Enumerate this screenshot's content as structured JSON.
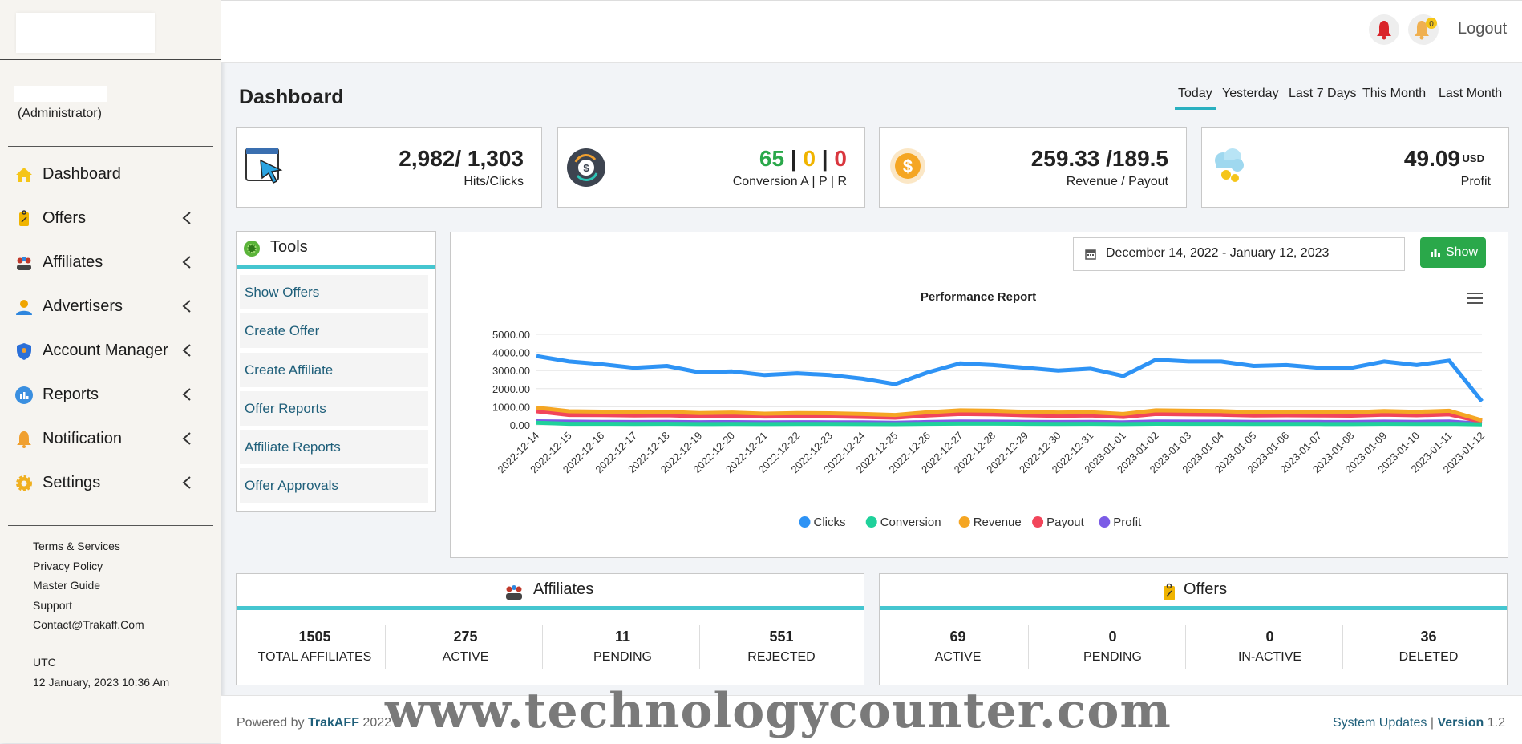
{
  "sidebar": {
    "user_role": "(Administrator)",
    "items": [
      {
        "label": "Dashboard",
        "icon": "home-icon",
        "color": "#f5c518"
      },
      {
        "label": "Offers",
        "icon": "offer-tag-icon",
        "color": "#f0b400"
      },
      {
        "label": "Affiliates",
        "icon": "affiliates-group-icon",
        "color": "#c0392b"
      },
      {
        "label": "Advertisers",
        "icon": "advertiser-person-icon",
        "color": "#f0a500"
      },
      {
        "label": "Account Manager",
        "icon": "shield-icon",
        "color": "#2b6fd8"
      },
      {
        "label": "Reports",
        "icon": "reports-chart-icon",
        "color": "#3a8fe0"
      },
      {
        "label": "Notification",
        "icon": "bell-icon",
        "color": "#f0a030"
      },
      {
        "label": "Settings",
        "icon": "gear-icon",
        "color": "#f0b020"
      }
    ],
    "links": [
      "Terms & Services",
      "Privacy Policy",
      "Master Guide",
      "Support",
      "Contact@Trakaff.Com"
    ],
    "timezone": "UTC",
    "datetime": "12 January, 2023 10:36 Am"
  },
  "topbar": {
    "notification_count": "0",
    "logout": "Logout"
  },
  "page": {
    "title": "Dashboard",
    "ranges": [
      "Today",
      "Yesterday",
      "Last 7 Days",
      "This Month",
      "Last Month"
    ]
  },
  "stats": {
    "hits": {
      "value": "2,982/ 1,303",
      "label": "Hits/Clicks"
    },
    "conversion": {
      "a": "65",
      "p": "0",
      "r": "0",
      "sep": "|",
      "label": "Conversion A | P | R",
      "colors": {
        "a": "#2aa84a",
        "p": "#f0b400",
        "r": "#d9363e"
      }
    },
    "revenue": {
      "value": "259.33 /189.5",
      "label": "Revenue / Payout"
    },
    "profit": {
      "value": "49.09",
      "unit": "USD",
      "label": "Profit"
    }
  },
  "tools": {
    "title": "Tools",
    "links": [
      "Show Offers",
      "Create Offer",
      "Create Affiliate",
      "Offer Reports",
      "Affiliate Reports",
      "Offer Approvals"
    ]
  },
  "chart_controls": {
    "date_range": "December 14, 2022 - January 12, 2023",
    "show": "Show"
  },
  "chart_data": {
    "type": "line",
    "title": "Performance Report",
    "x": [
      "2022-12-14",
      "2022-12-15",
      "2022-12-16",
      "2022-12-17",
      "2022-12-18",
      "2022-12-19",
      "2022-12-20",
      "2022-12-21",
      "2022-12-22",
      "2022-12-23",
      "2022-12-24",
      "2022-12-25",
      "2022-12-26",
      "2022-12-27",
      "2022-12-28",
      "2022-12-29",
      "2022-12-30",
      "2022-12-31",
      "2023-01-01",
      "2023-01-02",
      "2023-01-03",
      "2023-01-04",
      "2023-01-05",
      "2023-01-06",
      "2023-01-07",
      "2023-01-08",
      "2023-01-09",
      "2023-01-10",
      "2023-01-11",
      "2023-01-12"
    ],
    "y_ticks": [
      "5000.00",
      "4000.00",
      "3000.00",
      "2000.00",
      "1000.00",
      "0.00"
    ],
    "ylim": [
      0,
      5000
    ],
    "grid": true,
    "legend_position": "bottom",
    "series": [
      {
        "name": "Clicks",
        "color": "#2e93f5",
        "values": [
          3800,
          3500,
          3350,
          3150,
          3250,
          2900,
          2950,
          2750,
          2850,
          2750,
          2550,
          2250,
          2900,
          3400,
          3300,
          3150,
          3000,
          3100,
          2700,
          3600,
          3500,
          3500,
          3250,
          3300,
          3150,
          3150,
          3500,
          3300,
          3550,
          1300
        ]
      },
      {
        "name": "Conversion",
        "color": "#1fd19b",
        "values": [
          120,
          60,
          60,
          55,
          60,
          50,
          55,
          50,
          55,
          55,
          50,
          45,
          60,
          70,
          70,
          60,
          55,
          60,
          50,
          65,
          60,
          60,
          55,
          55,
          55,
          50,
          60,
          55,
          60,
          30
        ]
      },
      {
        "name": "Revenue",
        "color": "#f5a623",
        "values": [
          950,
          750,
          730,
          700,
          720,
          650,
          680,
          620,
          650,
          640,
          600,
          550,
          700,
          800,
          780,
          720,
          680,
          700,
          600,
          800,
          780,
          760,
          700,
          720,
          700,
          690,
          760,
          720,
          780,
          250
        ]
      },
      {
        "name": "Payout",
        "color": "#f2455a",
        "values": [
          750,
          550,
          540,
          520,
          530,
          480,
          500,
          460,
          480,
          470,
          440,
          400,
          520,
          600,
          580,
          530,
          500,
          520,
          440,
          600,
          580,
          560,
          520,
          530,
          520,
          510,
          560,
          530,
          580,
          180
        ]
      },
      {
        "name": "Profit",
        "color": "#7b5ce6",
        "values": [
          200,
          180,
          170,
          160,
          165,
          150,
          155,
          140,
          150,
          145,
          140,
          120,
          160,
          190,
          180,
          170,
          160,
          165,
          140,
          190,
          180,
          180,
          165,
          170,
          165,
          160,
          180,
          170,
          190,
          60
        ]
      }
    ]
  },
  "affiliates": {
    "title": "Affiliates",
    "stats": [
      {
        "n": "1505",
        "l": "TOTAL AFFILIATES"
      },
      {
        "n": "275",
        "l": "ACTIVE"
      },
      {
        "n": "11",
        "l": "PENDING"
      },
      {
        "n": "551",
        "l": "REJECTED"
      }
    ]
  },
  "offers": {
    "title": "Offers",
    "stats": [
      {
        "n": "69",
        "l": "ACTIVE"
      },
      {
        "n": "0",
        "l": "PENDING"
      },
      {
        "n": "0",
        "l": "IN-ACTIVE"
      },
      {
        "n": "36",
        "l": "DELETED"
      }
    ]
  },
  "footer": {
    "powered_prefix": "Powered by",
    "brand": "TrakAFF",
    "year": "2022",
    "system_updates": "System Updates",
    "version_label": "Version",
    "version": "1.2"
  },
  "watermark": "www.technologycounter.com"
}
